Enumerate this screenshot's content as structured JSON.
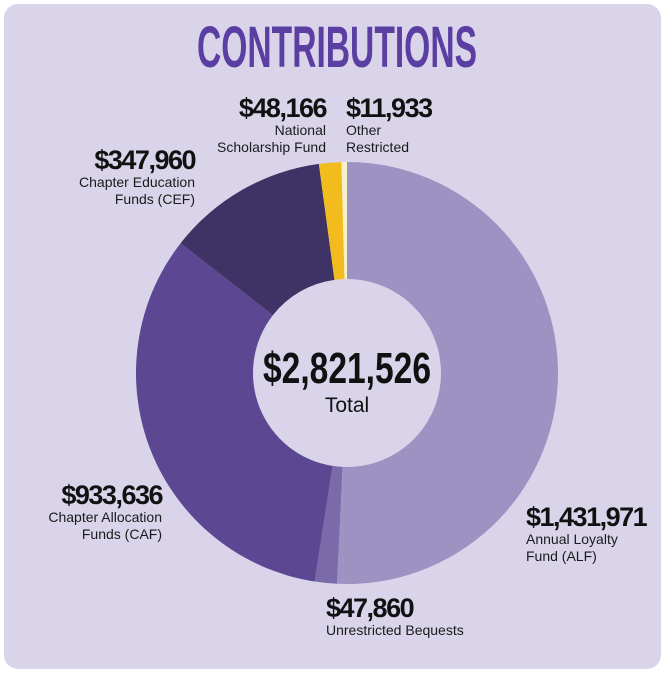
{
  "chart_data": {
    "type": "donut",
    "title": "CONTRIBUTIONS",
    "categories": [
      "Annual Loyalty Fund (ALF)",
      "Unrestricted Bequests",
      "Chapter Allocation Funds (CAF)",
      "Chapter Education Funds (CEF)",
      "National Scholarship Fund",
      "Other Restricted"
    ],
    "values": [
      1431971,
      47860,
      933636,
      347960,
      48166,
      11933
    ],
    "value_labels": [
      "$1,431,971",
      "$47,860",
      "$933,636",
      "$347,960",
      "$48,166",
      "$11,933"
    ],
    "colors": [
      "#9d93c2",
      "#7a6aa9",
      "#5c4892",
      "#3f3264",
      "#f2bd1c",
      "#f6f0cc"
    ],
    "center_text": "$2,821,526",
    "center_caption": "Total"
  }
}
